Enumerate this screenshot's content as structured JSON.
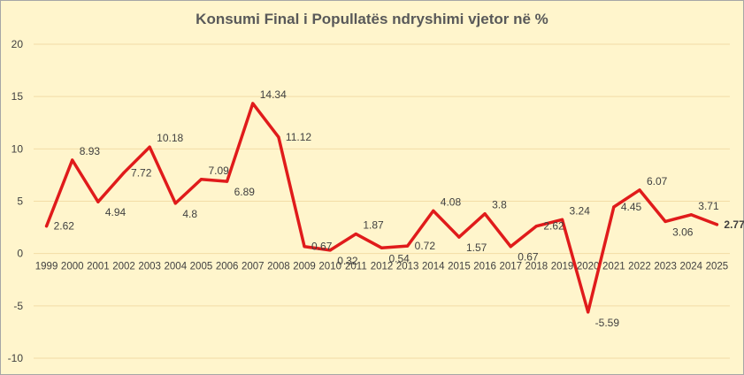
{
  "chart_data": {
    "type": "line",
    "title": "Konsumi Final i Popullatës ndryshimi vjetor në %",
    "xlabel": "",
    "ylabel": "",
    "ylim": [
      -10,
      20
    ],
    "yticks": [
      "20",
      "15",
      "10",
      "5",
      "0",
      "-5",
      "-10"
    ],
    "grid": true,
    "legend": "none",
    "categories": [
      "1999",
      "2000",
      "2001",
      "2002",
      "2003",
      "2004",
      "2005",
      "2006",
      "2007",
      "2008",
      "2009",
      "2010",
      "2011",
      "2012",
      "2013",
      "2014",
      "2015",
      "2016",
      "2017",
      "2018",
      "2019",
      "2020",
      "2021",
      "2022",
      "2023",
      "2024",
      "2025"
    ],
    "series": [
      {
        "color": "#e01b1b",
        "values": [
          2.62,
          8.93,
          4.94,
          7.72,
          10.18,
          4.8,
          7.09,
          6.89,
          14.34,
          11.12,
          0.67,
          0.32,
          1.87,
          0.54,
          0.72,
          4.08,
          1.57,
          3.8,
          0.67,
          2.62,
          3.24,
          -5.59,
          4.45,
          6.07,
          3.06,
          3.71,
          2.77
        ],
        "labels": [
          "2.62",
          "8.93",
          "4.94",
          "7.72",
          "10.18",
          "4.8",
          "7.09",
          "6.89",
          "14.34",
          "11.12",
          "0.67",
          "0.32",
          "1.87",
          "0.54",
          "0.72",
          "4.08",
          "1.57",
          "3.8",
          "0.67",
          "2.62",
          "3.24",
          "-5.59",
          "4.45",
          "6.07",
          "3.06",
          "3.71",
          "2.77"
        ]
      }
    ],
    "colors": {
      "background": "#fff5cc",
      "grid": "#f2dca6",
      "axis_text": "#404040",
      "title": "#595959"
    }
  }
}
